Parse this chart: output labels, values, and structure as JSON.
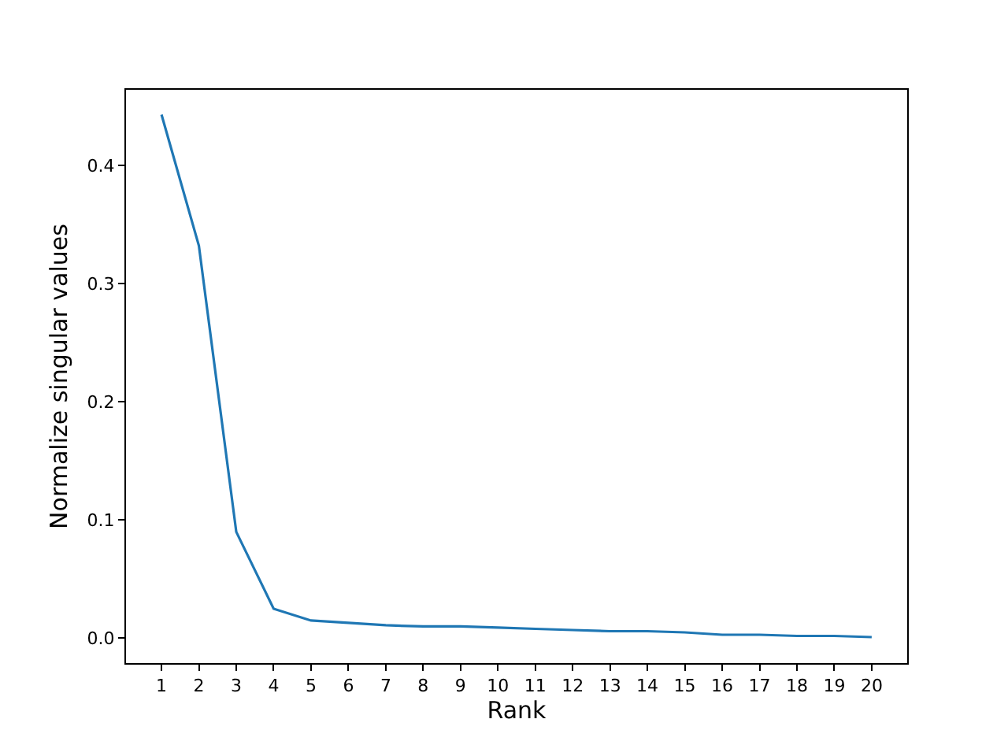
{
  "chart_data": {
    "type": "line",
    "xlabel": "Rank",
    "ylabel": "Normalize singular values",
    "x": [
      1,
      2,
      3,
      4,
      5,
      6,
      7,
      8,
      9,
      10,
      11,
      12,
      13,
      14,
      15,
      16,
      17,
      18,
      19,
      20
    ],
    "series": [
      {
        "color": "#1f77b4",
        "values": [
          0.443,
          0.332,
          0.09,
          0.025,
          0.015,
          0.013,
          0.011,
          0.01,
          0.01,
          0.009,
          0.008,
          0.007,
          0.006,
          0.006,
          0.005,
          0.003,
          0.003,
          0.002,
          0.002,
          0.001
        ]
      }
    ],
    "xlim": [
      0.05,
      20.95
    ],
    "ylim": [
      -0.021,
      0.464
    ],
    "xticks": [
      1,
      2,
      3,
      4,
      5,
      6,
      7,
      8,
      9,
      10,
      11,
      12,
      13,
      14,
      15,
      16,
      17,
      18,
      19,
      20
    ],
    "yticks": [
      {
        "value": 0,
        "label": "0.0"
      },
      {
        "value": 0.1,
        "label": "0.1"
      },
      {
        "value": 0.2,
        "label": "0.2"
      },
      {
        "value": 0.3,
        "label": "0.3"
      },
      {
        "value": 0.4,
        "label": "0.4"
      }
    ],
    "marker": "none",
    "line_style": "solid"
  }
}
